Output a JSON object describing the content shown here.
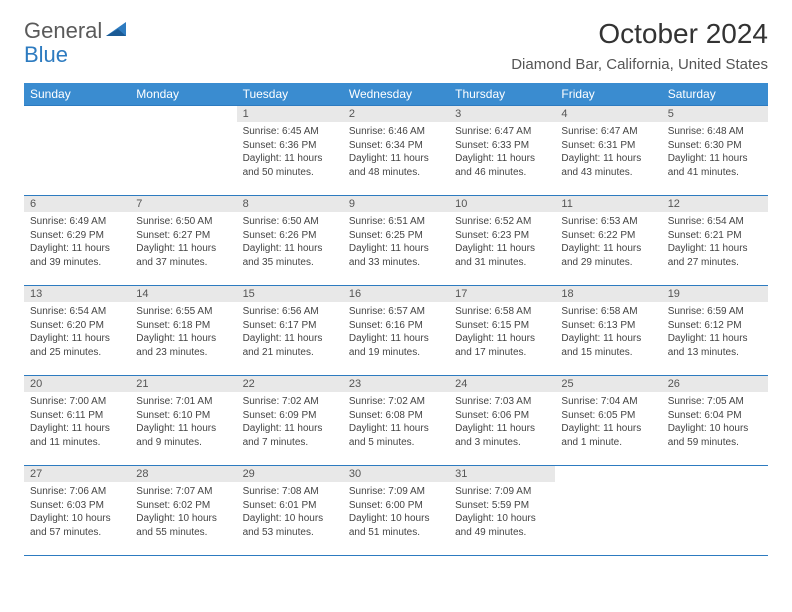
{
  "logo": {
    "word1": "General",
    "word2": "Blue"
  },
  "title": "October 2024",
  "location": "Diamond Bar, California, United States",
  "columns": [
    "Sunday",
    "Monday",
    "Tuesday",
    "Wednesday",
    "Thursday",
    "Friday",
    "Saturday"
  ],
  "colors": {
    "header_bg": "#3a8cd0",
    "header_text": "#ffffff",
    "daynum_bg": "#e8e8e8",
    "border": "#2d7bc0",
    "text": "#444444",
    "logo_gray": "#5a5a5a",
    "logo_blue": "#2d7bc0"
  },
  "fonts": {
    "title_pt": 28,
    "location_pt": 15,
    "th_pt": 12,
    "daynum_pt": 11,
    "body_pt": 10
  },
  "weeks": [
    [
      null,
      null,
      {
        "n": "1",
        "sr": "6:45 AM",
        "ss": "6:36 PM",
        "dl": "11 hours and 50 minutes."
      },
      {
        "n": "2",
        "sr": "6:46 AM",
        "ss": "6:34 PM",
        "dl": "11 hours and 48 minutes."
      },
      {
        "n": "3",
        "sr": "6:47 AM",
        "ss": "6:33 PM",
        "dl": "11 hours and 46 minutes."
      },
      {
        "n": "4",
        "sr": "6:47 AM",
        "ss": "6:31 PM",
        "dl": "11 hours and 43 minutes."
      },
      {
        "n": "5",
        "sr": "6:48 AM",
        "ss": "6:30 PM",
        "dl": "11 hours and 41 minutes."
      }
    ],
    [
      {
        "n": "6",
        "sr": "6:49 AM",
        "ss": "6:29 PM",
        "dl": "11 hours and 39 minutes."
      },
      {
        "n": "7",
        "sr": "6:50 AM",
        "ss": "6:27 PM",
        "dl": "11 hours and 37 minutes."
      },
      {
        "n": "8",
        "sr": "6:50 AM",
        "ss": "6:26 PM",
        "dl": "11 hours and 35 minutes."
      },
      {
        "n": "9",
        "sr": "6:51 AM",
        "ss": "6:25 PM",
        "dl": "11 hours and 33 minutes."
      },
      {
        "n": "10",
        "sr": "6:52 AM",
        "ss": "6:23 PM",
        "dl": "11 hours and 31 minutes."
      },
      {
        "n": "11",
        "sr": "6:53 AM",
        "ss": "6:22 PM",
        "dl": "11 hours and 29 minutes."
      },
      {
        "n": "12",
        "sr": "6:54 AM",
        "ss": "6:21 PM",
        "dl": "11 hours and 27 minutes."
      }
    ],
    [
      {
        "n": "13",
        "sr": "6:54 AM",
        "ss": "6:20 PM",
        "dl": "11 hours and 25 minutes."
      },
      {
        "n": "14",
        "sr": "6:55 AM",
        "ss": "6:18 PM",
        "dl": "11 hours and 23 minutes."
      },
      {
        "n": "15",
        "sr": "6:56 AM",
        "ss": "6:17 PM",
        "dl": "11 hours and 21 minutes."
      },
      {
        "n": "16",
        "sr": "6:57 AM",
        "ss": "6:16 PM",
        "dl": "11 hours and 19 minutes."
      },
      {
        "n": "17",
        "sr": "6:58 AM",
        "ss": "6:15 PM",
        "dl": "11 hours and 17 minutes."
      },
      {
        "n": "18",
        "sr": "6:58 AM",
        "ss": "6:13 PM",
        "dl": "11 hours and 15 minutes."
      },
      {
        "n": "19",
        "sr": "6:59 AM",
        "ss": "6:12 PM",
        "dl": "11 hours and 13 minutes."
      }
    ],
    [
      {
        "n": "20",
        "sr": "7:00 AM",
        "ss": "6:11 PM",
        "dl": "11 hours and 11 minutes."
      },
      {
        "n": "21",
        "sr": "7:01 AM",
        "ss": "6:10 PM",
        "dl": "11 hours and 9 minutes."
      },
      {
        "n": "22",
        "sr": "7:02 AM",
        "ss": "6:09 PM",
        "dl": "11 hours and 7 minutes."
      },
      {
        "n": "23",
        "sr": "7:02 AM",
        "ss": "6:08 PM",
        "dl": "11 hours and 5 minutes."
      },
      {
        "n": "24",
        "sr": "7:03 AM",
        "ss": "6:06 PM",
        "dl": "11 hours and 3 minutes."
      },
      {
        "n": "25",
        "sr": "7:04 AM",
        "ss": "6:05 PM",
        "dl": "11 hours and 1 minute."
      },
      {
        "n": "26",
        "sr": "7:05 AM",
        "ss": "6:04 PM",
        "dl": "10 hours and 59 minutes."
      }
    ],
    [
      {
        "n": "27",
        "sr": "7:06 AM",
        "ss": "6:03 PM",
        "dl": "10 hours and 57 minutes."
      },
      {
        "n": "28",
        "sr": "7:07 AM",
        "ss": "6:02 PM",
        "dl": "10 hours and 55 minutes."
      },
      {
        "n": "29",
        "sr": "7:08 AM",
        "ss": "6:01 PM",
        "dl": "10 hours and 53 minutes."
      },
      {
        "n": "30",
        "sr": "7:09 AM",
        "ss": "6:00 PM",
        "dl": "10 hours and 51 minutes."
      },
      {
        "n": "31",
        "sr": "7:09 AM",
        "ss": "5:59 PM",
        "dl": "10 hours and 49 minutes."
      },
      null,
      null
    ]
  ],
  "labels": {
    "sunrise": "Sunrise:",
    "sunset": "Sunset:",
    "daylight": "Daylight:"
  }
}
